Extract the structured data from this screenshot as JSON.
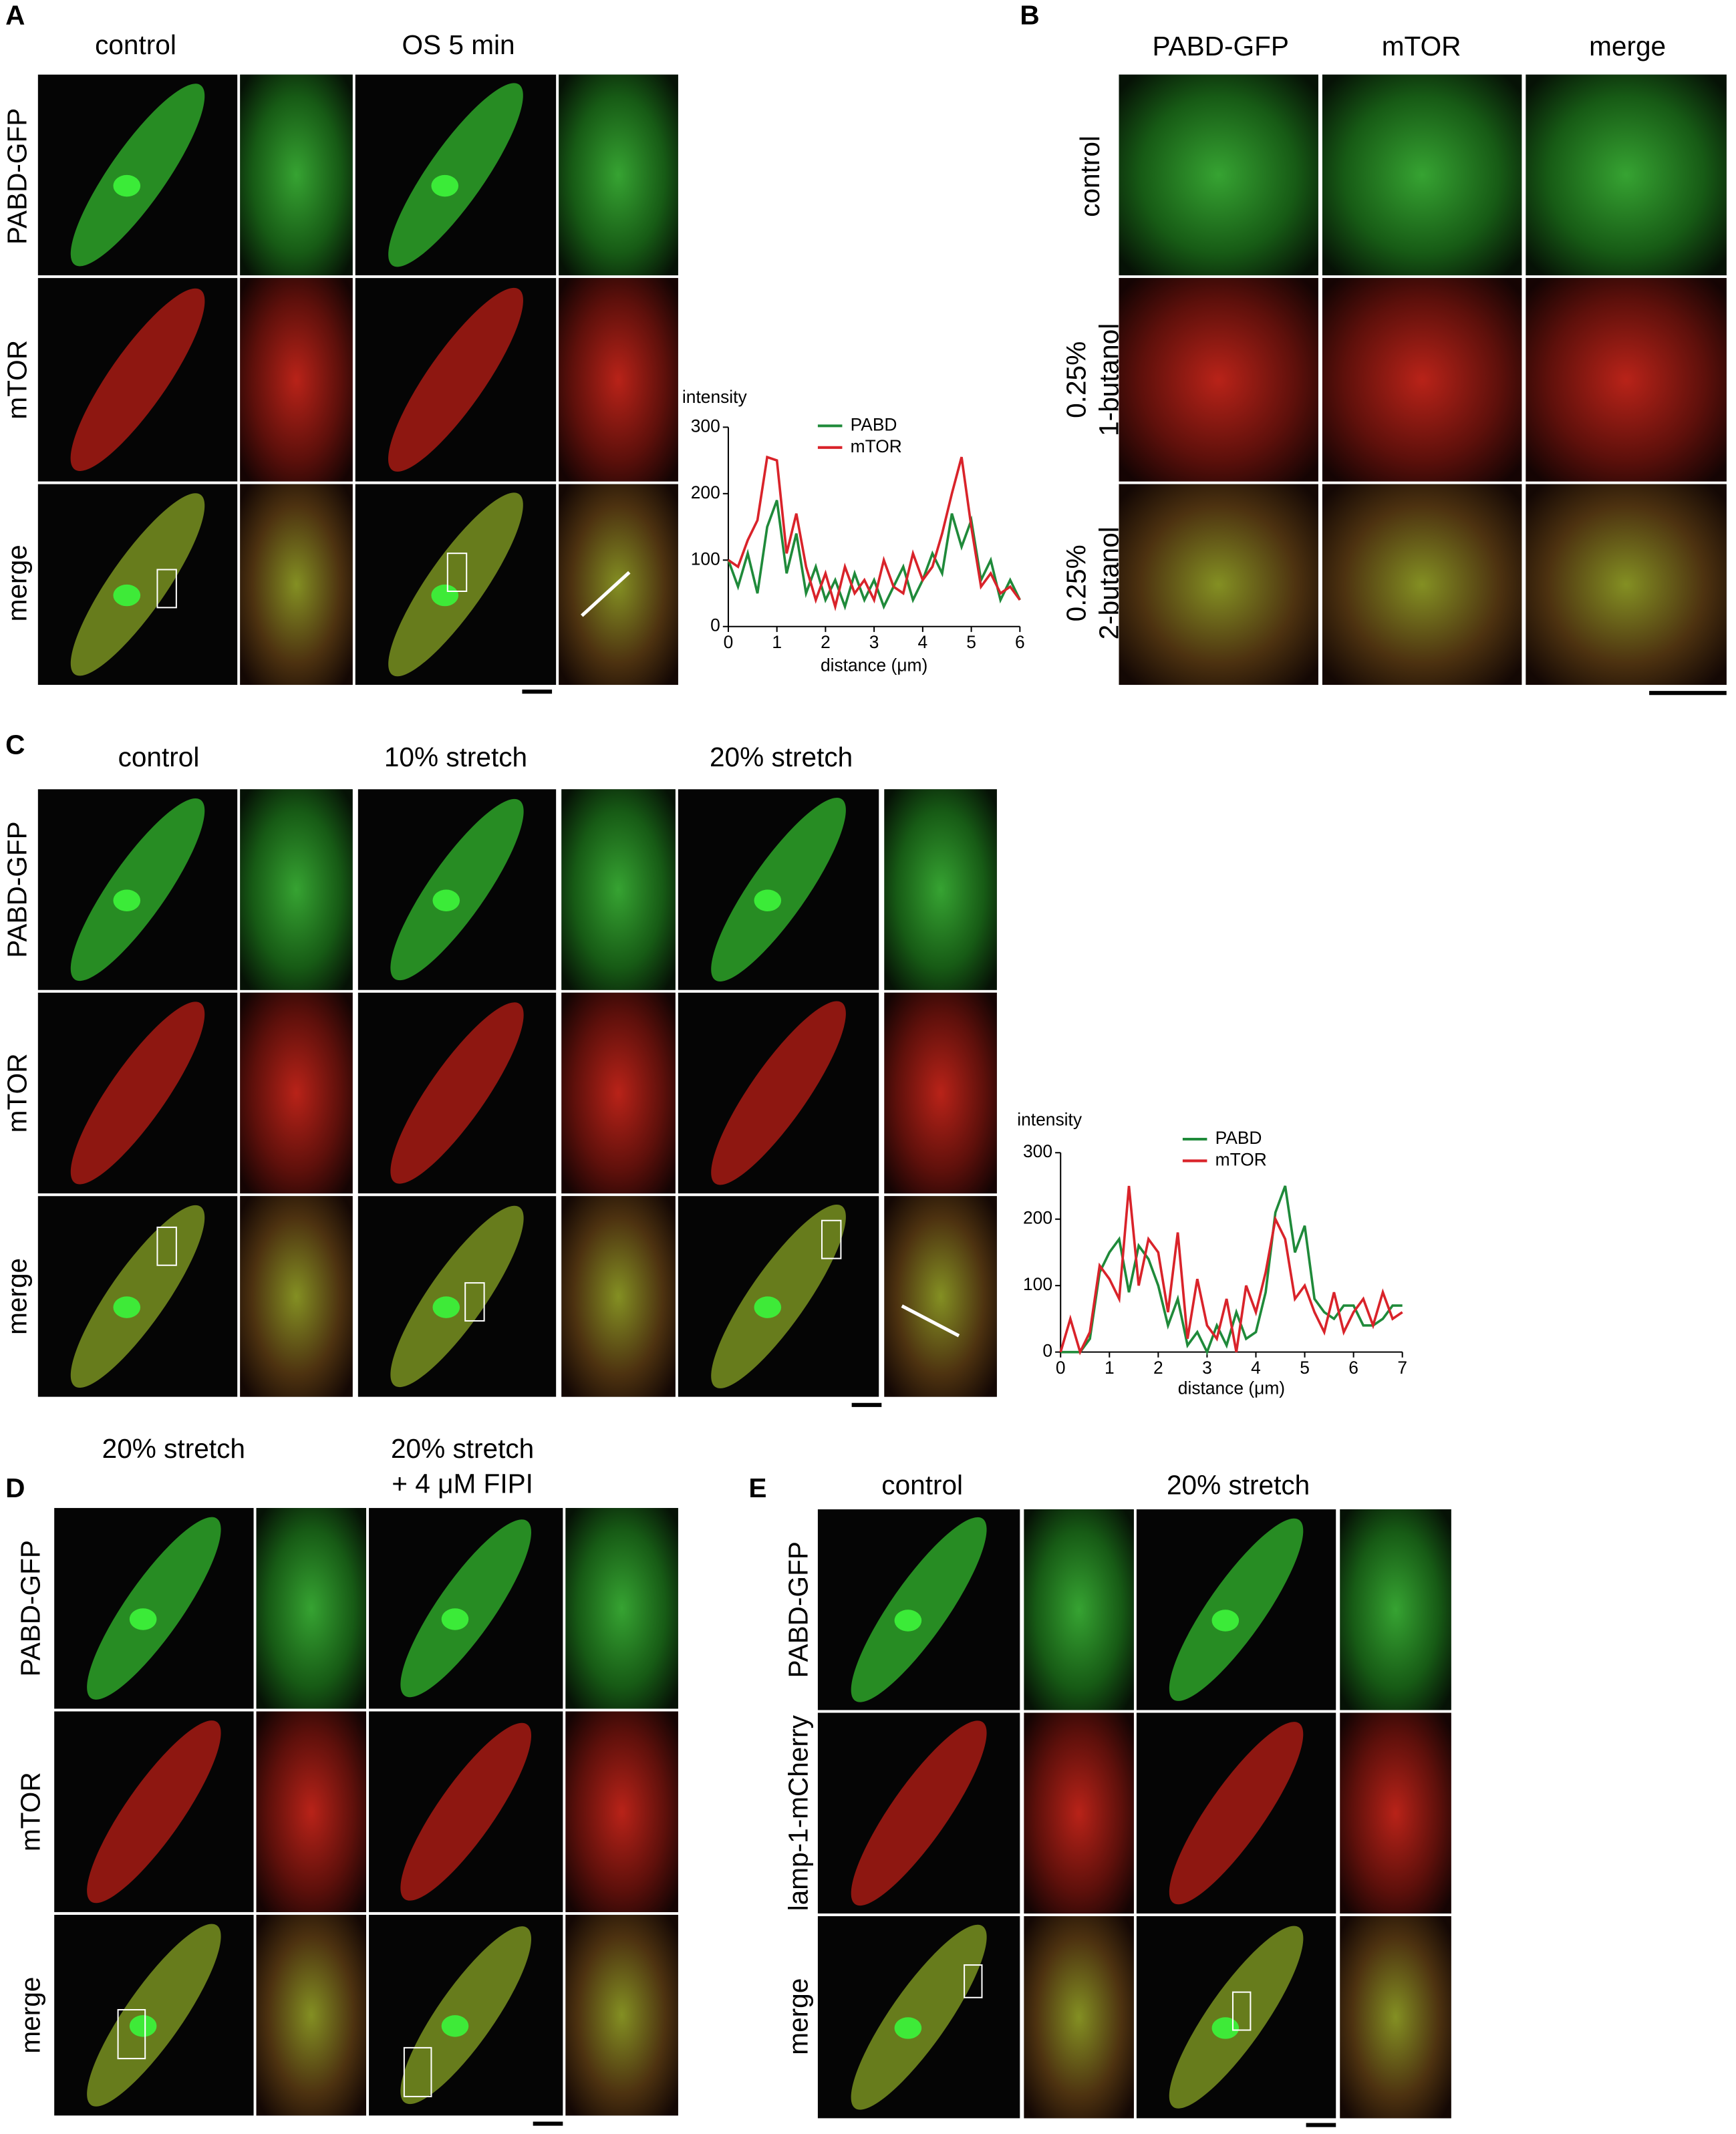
{
  "panels": [
    {
      "letter": "A",
      "column_headers": [
        [
          "control"
        ],
        [
          "OS 5 min"
        ]
      ],
      "row_labels": [
        [
          "PABD-GFP"
        ],
        [
          "mTOR"
        ],
        [
          "merge"
        ]
      ]
    },
    {
      "letter": "B",
      "column_headers": [
        [
          "PABD-GFP"
        ],
        [
          "mTOR"
        ],
        [
          "merge"
        ]
      ],
      "row_labels": [
        [
          "control"
        ],
        [
          "0.25%",
          "1-butanol"
        ],
        [
          "0.25%",
          "2-butanol"
        ]
      ]
    },
    {
      "letter": "C",
      "column_headers": [
        [
          "control"
        ],
        [
          "10% stretch"
        ],
        [
          "20% stretch"
        ]
      ],
      "row_labels": [
        [
          "PABD-GFP"
        ],
        [
          "mTOR"
        ],
        [
          "merge"
        ]
      ]
    },
    {
      "letter": "D",
      "column_headers": [
        [
          "20% stretch"
        ],
        [
          "20% stretch",
          "+ 4 μM FIPI"
        ]
      ],
      "row_labels": [
        [
          "PABD-GFP"
        ],
        [
          "mTOR"
        ],
        [
          "merge"
        ]
      ]
    },
    {
      "letter": "E",
      "column_headers": [
        [
          "control"
        ],
        [
          "20% stretch"
        ]
      ],
      "row_labels": [
        [
          "PABD-GFP"
        ],
        [
          "lamp-1-mCherry"
        ],
        [
          "merge"
        ]
      ]
    }
  ],
  "chart_data": [
    {
      "type": "line",
      "y_label": "intensity",
      "x_label": "distance (μm)",
      "x": [
        0,
        0.2,
        0.4,
        0.6,
        0.8,
        1.0,
        1.2,
        1.4,
        1.6,
        1.8,
        2.0,
        2.2,
        2.4,
        2.6,
        2.8,
        3.0,
        3.2,
        3.4,
        3.6,
        3.8,
        4.0,
        4.2,
        4.4,
        4.6,
        4.8,
        5.0,
        5.2,
        5.4,
        5.6,
        5.8,
        6.0
      ],
      "series": [
        {
          "name": "PABD",
          "color": "#1f8a3a",
          "values": [
            100,
            60,
            110,
            50,
            150,
            190,
            80,
            140,
            50,
            90,
            40,
            70,
            30,
            80,
            40,
            70,
            30,
            60,
            90,
            40,
            70,
            110,
            80,
            170,
            120,
            160,
            70,
            100,
            40,
            70,
            40
          ]
        },
        {
          "name": "mTOR",
          "color": "#d9232a",
          "values": [
            100,
            90,
            130,
            160,
            255,
            250,
            110,
            170,
            90,
            40,
            80,
            30,
            90,
            50,
            70,
            40,
            100,
            60,
            50,
            110,
            70,
            90,
            140,
            200,
            255,
            150,
            60,
            80,
            50,
            60,
            40
          ]
        }
      ],
      "xlim": [
        0,
        6
      ],
      "xticks": [
        0,
        1,
        2,
        3,
        4,
        5,
        6
      ],
      "ylim": [
        0,
        300
      ],
      "yticks": [
        0,
        100,
        200,
        300
      ]
    },
    {
      "type": "line",
      "y_label": "intensity",
      "x_label": "distance (μm)",
      "x": [
        0,
        0.2,
        0.4,
        0.6,
        0.8,
        1.0,
        1.2,
        1.4,
        1.6,
        1.8,
        2.0,
        2.2,
        2.4,
        2.6,
        2.8,
        3.0,
        3.2,
        3.4,
        3.6,
        3.8,
        4.0,
        4.2,
        4.4,
        4.6,
        4.8,
        5.0,
        5.2,
        5.4,
        5.6,
        5.8,
        6.0,
        6.2,
        6.4,
        6.6,
        6.8,
        7.0
      ],
      "series": [
        {
          "name": "PABD",
          "color": "#1f8a3a",
          "values": [
            0,
            0,
            0,
            20,
            120,
            150,
            170,
            90,
            160,
            140,
            100,
            40,
            80,
            10,
            30,
            0,
            40,
            10,
            60,
            20,
            30,
            90,
            210,
            250,
            150,
            190,
            80,
            60,
            50,
            70,
            70,
            40,
            40,
            50,
            70,
            70
          ]
        },
        {
          "name": "mTOR",
          "color": "#d9232a",
          "values": [
            0,
            50,
            0,
            30,
            130,
            110,
            80,
            250,
            100,
            170,
            150,
            60,
            180,
            20,
            110,
            40,
            20,
            80,
            0,
            100,
            60,
            120,
            200,
            170,
            80,
            100,
            60,
            30,
            90,
            30,
            60,
            80,
            40,
            90,
            50,
            60
          ]
        }
      ],
      "xlim": [
        0,
        7
      ],
      "xticks": [
        0,
        1,
        2,
        3,
        4,
        5,
        6,
        7
      ],
      "ylim": [
        0,
        300
      ],
      "yticks": [
        0,
        100,
        200,
        300
      ]
    }
  ]
}
